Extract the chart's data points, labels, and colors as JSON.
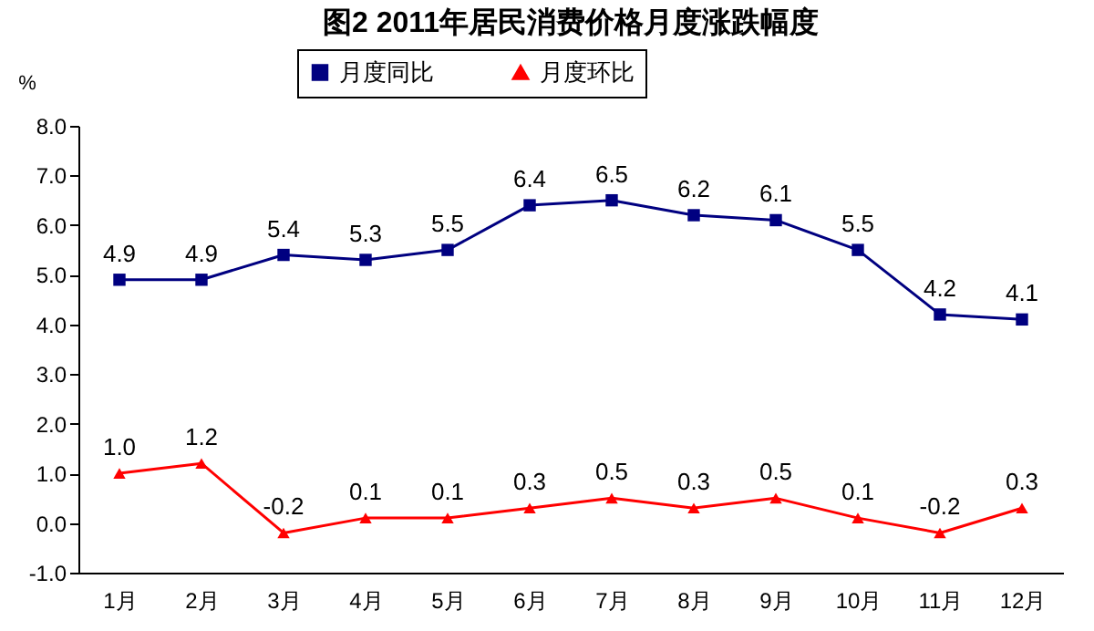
{
  "chart_data": {
    "type": "line",
    "title": "图2   2011年居民消费价格月度涨跌幅度",
    "ylabel": "%",
    "categories": [
      "1月",
      "2月",
      "3月",
      "4月",
      "5月",
      "6月",
      "7月",
      "8月",
      "9月",
      "10月",
      "11月",
      "12月"
    ],
    "series": [
      {
        "name": "月度同比",
        "color": "#000080",
        "marker": "square",
        "values": [
          4.9,
          4.9,
          5.4,
          5.3,
          5.5,
          6.4,
          6.5,
          6.2,
          6.1,
          5.5,
          4.2,
          4.1
        ],
        "value_labels": [
          "4.9",
          "4.9",
          "5.4",
          "5.3",
          "5.5",
          "6.4",
          "6.5",
          "6.2",
          "6.1",
          "5.5",
          "4.2",
          "4.1"
        ]
      },
      {
        "name": "月度环比",
        "color": "#ff0000",
        "marker": "triangle",
        "values": [
          1.0,
          1.2,
          -0.2,
          0.1,
          0.1,
          0.3,
          0.5,
          0.3,
          0.5,
          0.1,
          -0.2,
          0.3
        ],
        "value_labels": [
          "1.0",
          "1.2",
          "-0.2",
          "0.1",
          "0.1",
          "0.3",
          "0.5",
          "0.3",
          "0.5",
          "0.1",
          "-0.2",
          "0.3"
        ]
      }
    ],
    "ylim": [
      -1,
      8
    ],
    "yticks": [
      {
        "value": -1,
        "label": "-1.0"
      },
      {
        "value": 0,
        "label": "0.0"
      },
      {
        "value": 1,
        "label": "1.0"
      },
      {
        "value": 2,
        "label": "2.0"
      },
      {
        "value": 3,
        "label": "3.0"
      },
      {
        "value": 4,
        "label": "4.0"
      },
      {
        "value": 5,
        "label": "5.0"
      },
      {
        "value": 6,
        "label": "6.0"
      },
      {
        "value": 7,
        "label": "7.0"
      },
      {
        "value": 8,
        "label": "8.0"
      }
    ],
    "grid": false,
    "legend": "top",
    "line_style": "solid"
  }
}
